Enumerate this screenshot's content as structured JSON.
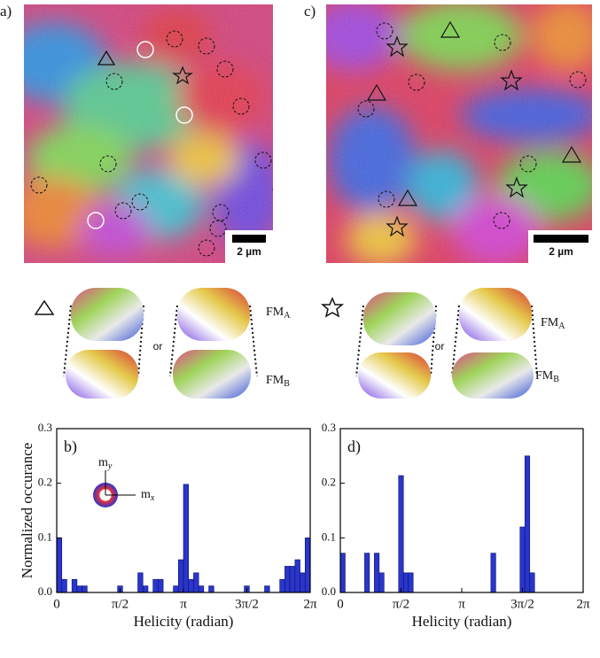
{
  "labels": {
    "a": "a)",
    "c": "c)",
    "scale_bar": "2 µm",
    "or": "or",
    "fm_a": {
      "main": "FM",
      "sub": "A"
    },
    "fm_b": {
      "main": "FM",
      "sub": "B"
    }
  },
  "chart_data": [
    {
      "type": "histogram",
      "panel_label": "b)",
      "ylabel": "Normalized occurance",
      "xlabel": "Helicity (radian)",
      "inset": {
        "my": {
          "main": "m",
          "sub": "y"
        },
        "mx": {
          "main": "m",
          "sub": "x"
        }
      },
      "color": "#2a35c9",
      "bins": [
        0,
        0.1257,
        0.2513,
        0.377,
        0.5027,
        0.6283,
        0.754,
        0.8796,
        1.0053,
        1.131,
        1.2566,
        1.3823,
        1.508,
        1.6336,
        1.7593,
        1.885,
        2.0106,
        2.1363,
        2.2619,
        2.3876,
        2.5133,
        2.6389,
        2.7646,
        2.8903,
        3.0159,
        3.1416,
        3.2673,
        3.3929,
        3.5186,
        3.6442,
        3.7699,
        3.8956,
        4.0212,
        4.1469,
        4.2726,
        4.3982,
        4.5239,
        4.6496,
        4.7752,
        4.9009,
        5.0265,
        5.1522,
        5.2779,
        5.4035,
        5.5292,
        5.6549,
        5.7805,
        5.9062,
        6.0319,
        6.1575,
        6.2832
      ],
      "values": [
        0.1,
        0.024,
        0,
        0.024,
        0.012,
        0.012,
        0,
        0,
        0,
        0,
        0,
        0,
        0.012,
        0,
        0,
        0,
        0.036,
        0.012,
        0,
        0.024,
        0.024,
        0,
        0,
        0.012,
        0.06,
        0.198,
        0.024,
        0.036,
        0.012,
        0,
        0.012,
        0,
        0,
        0,
        0,
        0,
        0,
        0.012,
        0,
        0,
        0,
        0.012,
        0,
        0,
        0.024,
        0.048,
        0.048,
        0.06,
        0.036,
        0.1
      ],
      "xlim": [
        0,
        6.2832
      ],
      "ylim": [
        0,
        0.3
      ],
      "xticks": [
        {
          "value": 0,
          "label": "0"
        },
        {
          "value": 1.5708,
          "label": "π/2"
        },
        {
          "value": 3.1416,
          "label": "π"
        },
        {
          "value": 4.7124,
          "label": "3π/2"
        },
        {
          "value": 6.2832,
          "label": "2π"
        }
      ],
      "yticks": [
        {
          "value": 0,
          "label": "0.0"
        },
        {
          "value": 0.1,
          "label": "0.1"
        },
        {
          "value": 0.2,
          "label": "0.2"
        },
        {
          "value": 0.3,
          "label": "0.3"
        }
      ]
    },
    {
      "type": "histogram",
      "panel_label": "d)",
      "xlabel": "Helicity (radian)",
      "color": "#2a35c9",
      "bins": [
        0,
        0.1257,
        0.2513,
        0.377,
        0.5027,
        0.6283,
        0.754,
        0.8796,
        1.0053,
        1.131,
        1.2566,
        1.3823,
        1.508,
        1.6336,
        1.7593,
        1.885,
        2.0106,
        2.1363,
        2.2619,
        2.3876,
        2.5133,
        2.6389,
        2.7646,
        2.8903,
        3.0159,
        3.1416,
        3.2673,
        3.3929,
        3.5186,
        3.6442,
        3.7699,
        3.8956,
        4.0212,
        4.1469,
        4.2726,
        4.3982,
        4.5239,
        4.6496,
        4.7752,
        4.9009,
        5.0265,
        5.1522,
        5.2779,
        5.4035,
        5.5292,
        5.6549,
        5.7805,
        5.9062,
        6.0319,
        6.1575,
        6.2832
      ],
      "values": [
        0.072,
        0,
        0,
        0,
        0,
        0.072,
        0,
        0.072,
        0.036,
        0,
        0,
        0,
        0.214,
        0.036,
        0.036,
        0,
        0,
        0,
        0,
        0,
        0,
        0,
        0,
        0,
        0,
        0,
        0,
        0,
        0,
        0,
        0,
        0.072,
        0,
        0,
        0,
        0,
        0,
        0.12,
        0.25,
        0.036,
        0,
        0,
        0,
        0,
        0,
        0,
        0,
        0,
        0,
        0
      ],
      "xlim": [
        0,
        6.2832
      ],
      "ylim": [
        0,
        0.3
      ],
      "xticks": [
        {
          "value": 0,
          "label": "0"
        },
        {
          "value": 1.5708,
          "label": "π/2"
        },
        {
          "value": 3.1416,
          "label": "π"
        },
        {
          "value": 4.7124,
          "label": "3π/2"
        },
        {
          "value": 6.2832,
          "label": "2π"
        }
      ],
      "yticks": [
        {
          "value": 0,
          "label": "0.0"
        },
        {
          "value": 0.1,
          "label": "0.1"
        },
        {
          "value": 0.2,
          "label": "0.2"
        },
        {
          "value": 0.3,
          "label": "0.3"
        }
      ]
    }
  ]
}
